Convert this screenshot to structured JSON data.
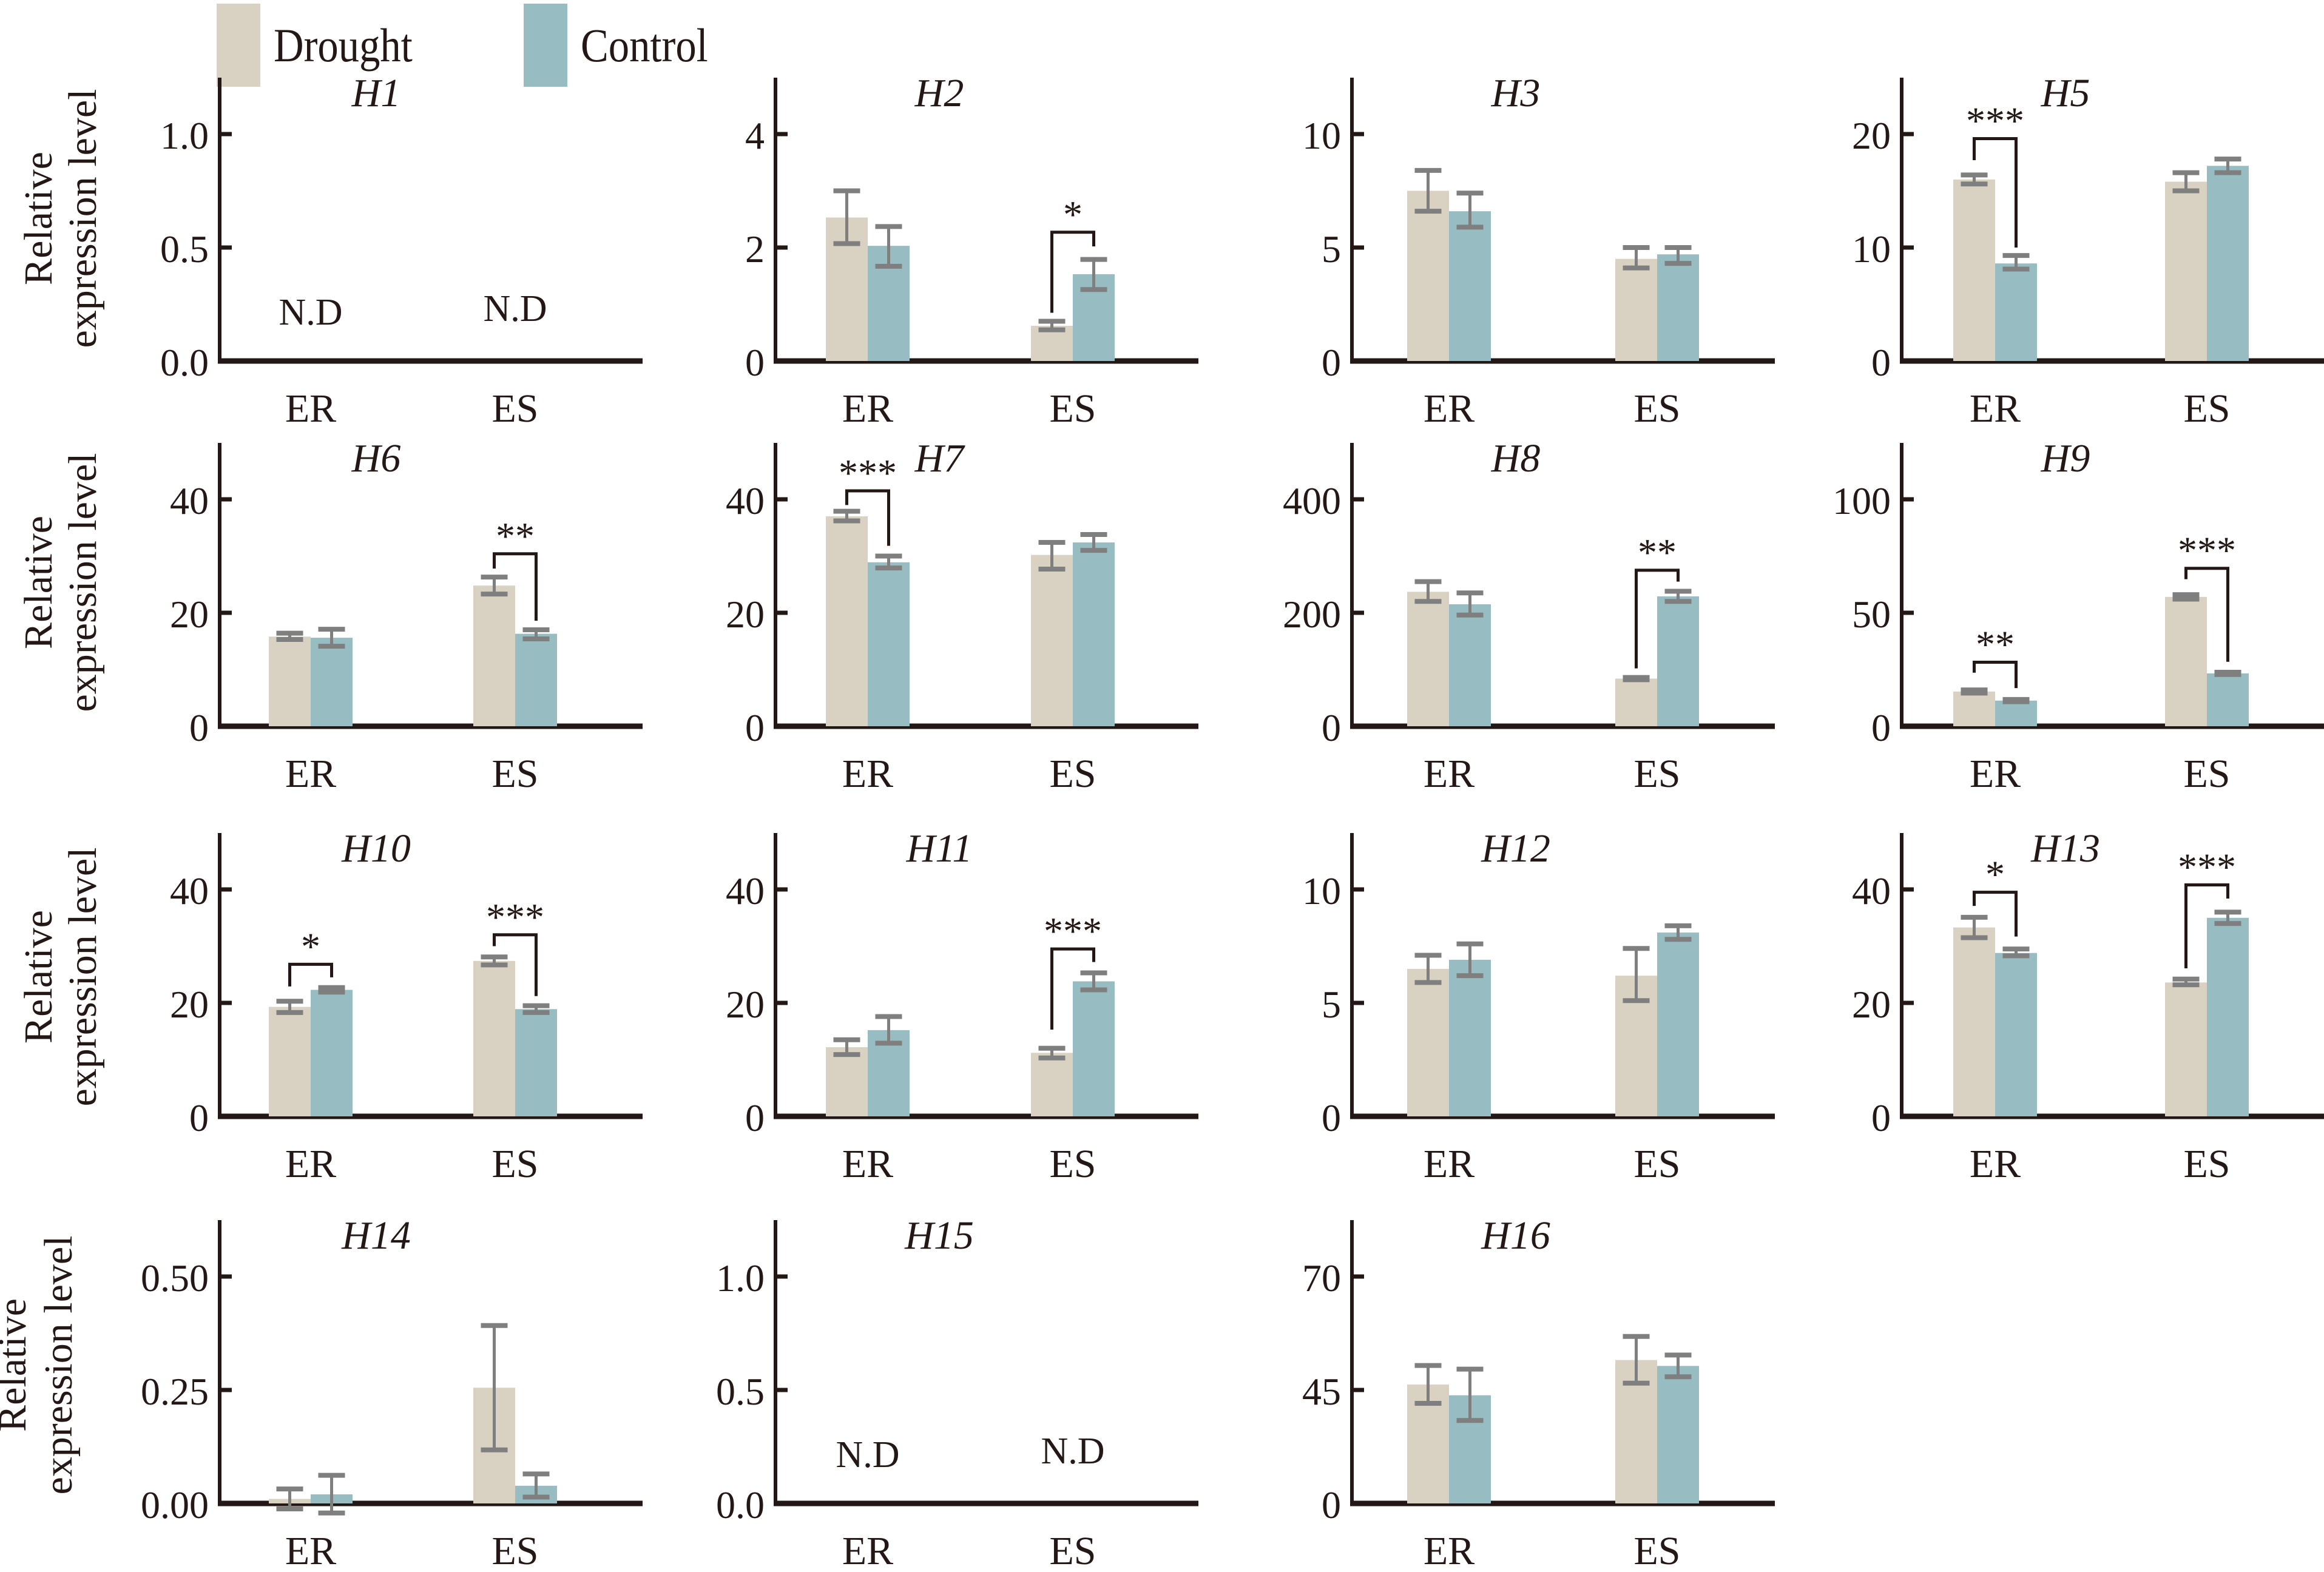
{
  "legend": {
    "items": [
      {
        "key": "drought",
        "label": "Drought",
        "color": "#d9d2c3"
      },
      {
        "key": "control",
        "label": "Control",
        "color": "#97bcc2"
      }
    ]
  },
  "y_axis_title": [
    "Relative",
    "expression level"
  ],
  "error_bar_color": "#7f7f7f",
  "axis_color": "#231815",
  "chart_data": [
    {
      "type": "bar",
      "title": "H1",
      "categories": [
        "ER",
        "ES"
      ],
      "ylabel": "Relative expression level",
      "ticks": [
        0,
        0.5,
        1.0
      ],
      "tick_labels": [
        "0.0",
        "0.5",
        "1.0"
      ],
      "ylim": [
        0,
        1.25
      ],
      "not_detected": [
        "N.D",
        "N.D"
      ],
      "series": [],
      "significance": []
    },
    {
      "type": "bar",
      "title": "H2",
      "categories": [
        "ER",
        "ES"
      ],
      "ticks": [
        0,
        2,
        4
      ],
      "tick_labels": [
        "0",
        "2",
        "4"
      ],
      "ylim": [
        0,
        5
      ],
      "series": [
        {
          "name": "Drought",
          "values": [
            2.53,
            0.62
          ],
          "err_low": [
            2.07,
            0.55
          ],
          "err_high": [
            3.0,
            0.7
          ]
        },
        {
          "name": "Control",
          "values": [
            2.03,
            1.53
          ],
          "err_low": [
            1.67,
            1.26
          ],
          "err_high": [
            2.37,
            1.79
          ]
        }
      ],
      "significance": [
        {
          "category": "ES",
          "label": "*",
          "top": 2.27,
          "left_end": 0.85,
          "right_end": 2.02
        }
      ]
    },
    {
      "type": "bar",
      "title": "H3",
      "categories": [
        "ER",
        "ES"
      ],
      "ticks": [
        0,
        5,
        10
      ],
      "tick_labels": [
        "0",
        "5",
        "10"
      ],
      "ylim": [
        0,
        12.5
      ],
      "series": [
        {
          "name": "Drought",
          "values": [
            7.5,
            4.5
          ],
          "err_low": [
            6.6,
            4.1
          ],
          "err_high": [
            8.4,
            5.0
          ]
        },
        {
          "name": "Control",
          "values": [
            6.6,
            4.7
          ],
          "err_low": [
            5.9,
            4.3
          ],
          "err_high": [
            7.4,
            5.0
          ]
        }
      ],
      "significance": []
    },
    {
      "type": "bar",
      "title": "H5",
      "categories": [
        "ER",
        "ES"
      ],
      "ticks": [
        0,
        10,
        20
      ],
      "tick_labels": [
        "0",
        "10",
        "20"
      ],
      "ylim": [
        0,
        25
      ],
      "series": [
        {
          "name": "Drought",
          "values": [
            16.0,
            15.8
          ],
          "err_low": [
            15.6,
            15.0
          ],
          "err_high": [
            16.4,
            16.6
          ]
        },
        {
          "name": "Control",
          "values": [
            8.6,
            17.2
          ],
          "err_low": [
            8.1,
            16.6
          ],
          "err_high": [
            9.3,
            17.8
          ]
        }
      ],
      "significance": [
        {
          "category": "ER",
          "label": "***",
          "top": 19.6,
          "left_end": 17.7,
          "right_end": 10.0
        }
      ]
    },
    {
      "type": "bar",
      "title": "H6",
      "categories": [
        "ER",
        "ES"
      ],
      "ticks": [
        0,
        20,
        40
      ],
      "tick_labels": [
        "0",
        "20",
        "40"
      ],
      "ylim": [
        0,
        50
      ],
      "series": [
        {
          "name": "Drought",
          "values": [
            15.8,
            24.8
          ],
          "err_low": [
            15.3,
            23.3
          ],
          "err_high": [
            16.4,
            26.3
          ]
        },
        {
          "name": "Control",
          "values": [
            15.6,
            16.3
          ],
          "err_low": [
            14.1,
            15.4
          ],
          "err_high": [
            17.1,
            17.0
          ]
        }
      ],
      "significance": [
        {
          "category": "ES",
          "label": "**",
          "top": 30.4,
          "left_end": 27.8,
          "right_end": 18.6
        }
      ]
    },
    {
      "type": "bar",
      "title": "H7",
      "categories": [
        "ER",
        "ES"
      ],
      "ticks": [
        0,
        20,
        40
      ],
      "tick_labels": [
        "0",
        "20",
        "40"
      ],
      "ylim": [
        0,
        50
      ],
      "series": [
        {
          "name": "Drought",
          "values": [
            37.0,
            30.2
          ],
          "err_low": [
            36.2,
            27.7
          ],
          "err_high": [
            37.9,
            32.4
          ]
        },
        {
          "name": "Control",
          "values": [
            28.9,
            32.4
          ],
          "err_low": [
            27.9,
            31.0
          ],
          "err_high": [
            30.0,
            33.8
          ]
        }
      ],
      "significance": [
        {
          "category": "ER",
          "label": "***",
          "top": 41.5,
          "left_end": 39.0,
          "right_end": 31.8
        }
      ]
    },
    {
      "type": "bar",
      "title": "H8",
      "categories": [
        "ER",
        "ES"
      ],
      "ticks": [
        0,
        200,
        400
      ],
      "tick_labels": [
        "0",
        "200",
        "400"
      ],
      "ylim": [
        0,
        500
      ],
      "series": [
        {
          "name": "Drought",
          "values": [
            237,
            84
          ],
          "err_low": [
            220,
            82
          ],
          "err_high": [
            255,
            86
          ]
        },
        {
          "name": "Control",
          "values": [
            215,
            229
          ],
          "err_low": [
            196,
            220
          ],
          "err_high": [
            235,
            238
          ]
        }
      ],
      "significance": [
        {
          "category": "ES",
          "label": "**",
          "top": 275,
          "left_end": 102,
          "right_end": 255
        }
      ]
    },
    {
      "type": "bar",
      "title": "H9",
      "categories": [
        "ER",
        "ES"
      ],
      "ticks": [
        0,
        50,
        100
      ],
      "tick_labels": [
        "0",
        "50",
        "100"
      ],
      "ylim": [
        0,
        125
      ],
      "series": [
        {
          "name": "Drought",
          "values": [
            15.3,
            57.0
          ],
          "err_low": [
            14.6,
            56.0
          ],
          "err_high": [
            16.0,
            58.0
          ]
        },
        {
          "name": "Control",
          "values": [
            11.3,
            23.3
          ],
          "err_low": [
            10.8,
            22.8
          ],
          "err_high": [
            11.8,
            23.8
          ]
        }
      ],
      "significance": [
        {
          "category": "ER",
          "label": "**",
          "top": 28.2,
          "left_end": 23.6,
          "right_end": 16.8
        },
        {
          "category": "ES",
          "label": "***",
          "top": 69.6,
          "left_end": 64.8,
          "right_end": 28.4
        }
      ]
    },
    {
      "type": "bar",
      "title": "H10",
      "categories": [
        "ER",
        "ES"
      ],
      "ticks": [
        0,
        20,
        40
      ],
      "tick_labels": [
        "0",
        "20",
        "40"
      ],
      "ylim": [
        0,
        50
      ],
      "series": [
        {
          "name": "Drought",
          "values": [
            19.3,
            27.4
          ],
          "err_low": [
            18.3,
            26.7
          ],
          "err_high": [
            20.3,
            28.1
          ]
        },
        {
          "name": "Control",
          "values": [
            22.3,
            18.9
          ],
          "err_low": [
            21.9,
            18.3
          ],
          "err_high": [
            22.7,
            19.5
          ]
        }
      ],
      "significance": [
        {
          "category": "ER",
          "label": "*",
          "top": 26.8,
          "left_end": 22.9,
          "right_end": 24.5
        },
        {
          "category": "ES",
          "label": "***",
          "top": 32.0,
          "left_end": 30.0,
          "right_end": 21.2
        }
      ]
    },
    {
      "type": "bar",
      "title": "H11",
      "categories": [
        "ER",
        "ES"
      ],
      "ticks": [
        0,
        20,
        40
      ],
      "tick_labels": [
        "0",
        "20",
        "40"
      ],
      "ylim": [
        0,
        50
      ],
      "series": [
        {
          "name": "Drought",
          "values": [
            12.2,
            11.2
          ],
          "err_low": [
            10.9,
            10.3
          ],
          "err_high": [
            13.5,
            12.0
          ]
        },
        {
          "name": "Control",
          "values": [
            15.2,
            23.8
          ],
          "err_low": [
            12.9,
            22.3
          ],
          "err_high": [
            17.6,
            25.3
          ]
        }
      ],
      "significance": [
        {
          "category": "ES",
          "label": "***",
          "top": 29.5,
          "left_end": 15.3,
          "right_end": 27.2
        }
      ]
    },
    {
      "type": "bar",
      "title": "H12",
      "categories": [
        "ER",
        "ES"
      ],
      "ticks": [
        0,
        5,
        10
      ],
      "tick_labels": [
        "0",
        "5",
        "10"
      ],
      "ylim": [
        0,
        12.5
      ],
      "series": [
        {
          "name": "Drought",
          "values": [
            6.5,
            6.2
          ],
          "err_low": [
            5.9,
            5.1
          ],
          "err_high": [
            7.1,
            7.4
          ]
        },
        {
          "name": "Control",
          "values": [
            6.9,
            8.1
          ],
          "err_low": [
            6.2,
            7.8
          ],
          "err_high": [
            7.6,
            8.4
          ]
        }
      ],
      "significance": []
    },
    {
      "type": "bar",
      "title": "H13",
      "categories": [
        "ER",
        "ES"
      ],
      "ticks": [
        0,
        20,
        40
      ],
      "tick_labels": [
        "0",
        "20",
        "40"
      ],
      "ylim": [
        0,
        50
      ],
      "series": [
        {
          "name": "Drought",
          "values": [
            33.3,
            23.6
          ],
          "err_low": [
            31.5,
            23.2
          ],
          "err_high": [
            35.1,
            24.2
          ]
        },
        {
          "name": "Control",
          "values": [
            28.8,
            35.0
          ],
          "err_low": [
            28.3,
            34.0
          ],
          "err_high": [
            29.5,
            36.0
          ]
        }
      ],
      "significance": [
        {
          "category": "ER",
          "label": "*",
          "top": 39.5,
          "left_end": 37.1,
          "right_end": 31.7
        },
        {
          "category": "ES",
          "label": "***",
          "top": 40.8,
          "left_end": 26.1,
          "right_end": 38.4
        }
      ]
    },
    {
      "type": "bar",
      "title": "H14",
      "categories": [
        "ER",
        "ES"
      ],
      "ticks": [
        0,
        0.25,
        0.5
      ],
      "tick_labels": [
        "0.00",
        "0.25",
        "0.50"
      ],
      "ylim": [
        0,
        0.625
      ],
      "series": [
        {
          "name": "Drought",
          "values": [
            0.01,
            0.255
          ],
          "err_low": [
            -0.012,
            0.118
          ],
          "err_high": [
            0.032,
            0.392
          ]
        },
        {
          "name": "Control",
          "values": [
            0.02,
            0.039
          ],
          "err_low": [
            -0.021,
            0.014
          ],
          "err_high": [
            0.062,
            0.065
          ]
        }
      ],
      "significance": []
    },
    {
      "type": "bar",
      "title": "H15",
      "categories": [
        "ER",
        "ES"
      ],
      "ticks": [
        0,
        0.5,
        1.0
      ],
      "tick_labels": [
        "0.0",
        "0.5",
        "1.0"
      ],
      "ylim": [
        0,
        1.25
      ],
      "not_detected": [
        "N.D",
        "N.D"
      ],
      "series": [],
      "significance": []
    },
    {
      "type": "bar",
      "title": "H16",
      "categories": [
        "ER",
        "ES"
      ],
      "ticks": [
        0,
        45,
        70
      ],
      "tick_labels": [
        "0",
        "45",
        "70"
      ],
      "ylim": [
        0,
        82.5
      ],
      "axis_note": "non-linear (broken) y-axis: ticks evenly spaced",
      "series": [
        {
          "name": "Drought",
          "values": [
            46.2,
            51.6
          ],
          "err_low": [
            39.7,
            46.5
          ],
          "err_high": [
            50.4,
            56.8
          ]
        },
        {
          "name": "Control",
          "values": [
            42.9,
            50.3
          ],
          "err_low": [
            32.9,
            47.9
          ],
          "err_high": [
            49.6,
            52.7
          ]
        }
      ],
      "significance": []
    }
  ]
}
